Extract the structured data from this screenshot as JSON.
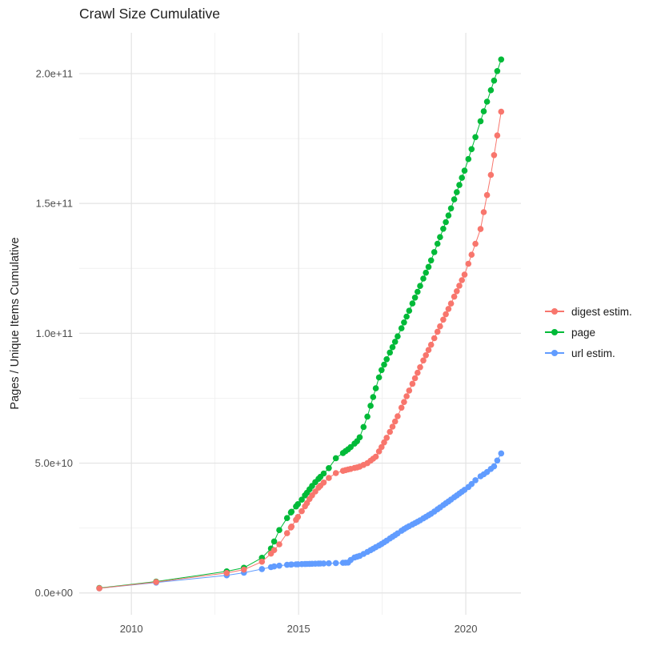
{
  "chart_data": {
    "type": "line",
    "title": "Crawl Size Cumulative",
    "xlabel": "",
    "ylabel": "Pages / Unique Items Cumulative",
    "background": "#FFFFFF",
    "grid": true,
    "legend_position": "right",
    "x_axis": {
      "domain": [
        2008.44,
        2021.65
      ],
      "major_ticks": [
        2010,
        2015,
        2020
      ],
      "major_labels": [
        "2010",
        "2015",
        "2020"
      ],
      "minor_ticks": [
        2012.5,
        2017.5
      ]
    },
    "y_axis": {
      "domain_e9": [
        -8.4,
        215.7
      ],
      "major_ticks_e9": [
        0,
        50,
        100,
        150,
        200
      ],
      "major_labels": [
        "0.0e+00",
        "5.0e+10",
        "1.0e+11",
        "1.5e+11",
        "2.0e+11"
      ],
      "minor_ticks_e9": [
        25,
        75,
        125,
        175
      ]
    },
    "crawl_dates": [
      2009.04,
      2010.74,
      2012.85,
      2013.365,
      2013.904,
      2014.173,
      2014.269,
      2014.423,
      2014.654,
      2014.769,
      2014.788,
      2014.923,
      2014.981,
      2015.096,
      2015.192,
      2015.25,
      2015.327,
      2015.404,
      2015.5,
      2015.596,
      2015.654,
      2015.75,
      2015.904,
      2016.115,
      2016.327,
      2016.404,
      2016.481,
      2016.558,
      2016.673,
      2016.75,
      2016.827,
      2016.942,
      2017.058,
      2017.154,
      2017.231,
      2017.308,
      2017.404,
      2017.481,
      2017.558,
      2017.635,
      2017.731,
      2017.808,
      2017.885,
      2017.962,
      2018.077,
      2018.154,
      2018.231,
      2018.308,
      2018.404,
      2018.481,
      2018.558,
      2018.635,
      2018.731,
      2018.808,
      2018.885,
      2018.962,
      2019.058,
      2019.154,
      2019.231,
      2019.327,
      2019.404,
      2019.481,
      2019.558,
      2019.654,
      2019.731,
      2019.808,
      2019.885,
      2019.962,
      2020.077,
      2020.173,
      2020.288,
      2020.442,
      2020.538,
      2020.635,
      2020.75,
      2020.846,
      2020.942,
      2021.058
    ],
    "series": [
      {
        "name": "digest estim.",
        "color": "#F8766D",
        "keypoints_year_e9": [
          [
            2009.04,
            1.8
          ],
          [
            2010.74,
            4.2
          ],
          [
            2012.85,
            7.7
          ],
          [
            2013.37,
            9.0
          ],
          [
            2013.9,
            12.0
          ],
          [
            2014.17,
            15.1
          ],
          [
            2014.45,
            19.1
          ],
          [
            2014.69,
            23.7
          ],
          [
            2014.93,
            28.3
          ],
          [
            2015.17,
            32.9
          ],
          [
            2015.36,
            36.9
          ],
          [
            2015.6,
            40.6
          ],
          [
            2015.84,
            43.7
          ],
          [
            2016.12,
            46.2
          ],
          [
            2016.4,
            47.3
          ],
          [
            2016.8,
            48.5
          ],
          [
            2017.06,
            50.0
          ],
          [
            2017.31,
            52.5
          ],
          [
            2017.5,
            56.6
          ],
          [
            2017.73,
            62.0
          ],
          [
            2017.96,
            68.0
          ],
          [
            2018.31,
            78.0
          ],
          [
            2018.73,
            89.5
          ],
          [
            2019.15,
            100.5
          ],
          [
            2019.56,
            111.5
          ],
          [
            2019.96,
            122.5
          ],
          [
            2020.44,
            140.0
          ],
          [
            2020.75,
            161.0
          ],
          [
            2021.06,
            185.5
          ]
        ]
      },
      {
        "name": "page",
        "color": "#00BA38",
        "keypoints_year_e9": [
          [
            2009.04,
            1.9
          ],
          [
            2010.74,
            4.4
          ],
          [
            2012.85,
            8.3
          ],
          [
            2013.37,
            9.7
          ],
          [
            2013.9,
            13.5
          ],
          [
            2014.17,
            17.0
          ],
          [
            2014.45,
            25.0
          ],
          [
            2014.77,
            31.0
          ],
          [
            2015.1,
            36.0
          ],
          [
            2015.45,
            42.0
          ],
          [
            2015.9,
            48.0
          ],
          [
            2016.12,
            52.0
          ],
          [
            2016.5,
            55.5
          ],
          [
            2016.8,
            59.0
          ],
          [
            2017.06,
            68.0
          ],
          [
            2017.45,
            85.0
          ],
          [
            2018.08,
            102.0
          ],
          [
            2018.9,
            126.0
          ],
          [
            2019.5,
            146.0
          ],
          [
            2020.0,
            164.0
          ],
          [
            2020.5,
            184.0
          ],
          [
            2021.06,
            205.5
          ]
        ]
      },
      {
        "name": "url estim.",
        "color": "#619CFF",
        "keypoints_year_e9": [
          [
            2009.04,
            1.8
          ],
          [
            2010.74,
            4.0
          ],
          [
            2012.85,
            6.8
          ],
          [
            2013.37,
            7.8
          ],
          [
            2013.9,
            9.2
          ],
          [
            2014.3,
            10.3
          ],
          [
            2014.7,
            10.9
          ],
          [
            2015.1,
            11.1
          ],
          [
            2015.6,
            11.3
          ],
          [
            2016.1,
            11.5
          ],
          [
            2016.5,
            11.7
          ],
          [
            2016.6,
            13.4
          ],
          [
            2016.83,
            14.3
          ],
          [
            2017.06,
            15.8
          ],
          [
            2017.5,
            19.0
          ],
          [
            2017.9,
            22.4
          ],
          [
            2018.2,
            25.0
          ],
          [
            2018.6,
            27.7
          ],
          [
            2019.0,
            30.8
          ],
          [
            2019.4,
            34.5
          ],
          [
            2019.8,
            38.2
          ],
          [
            2020.1,
            41.0
          ],
          [
            2020.35,
            44.2
          ],
          [
            2020.6,
            46.2
          ],
          [
            2020.85,
            48.8
          ],
          [
            2021.06,
            53.8
          ]
        ]
      }
    ]
  }
}
